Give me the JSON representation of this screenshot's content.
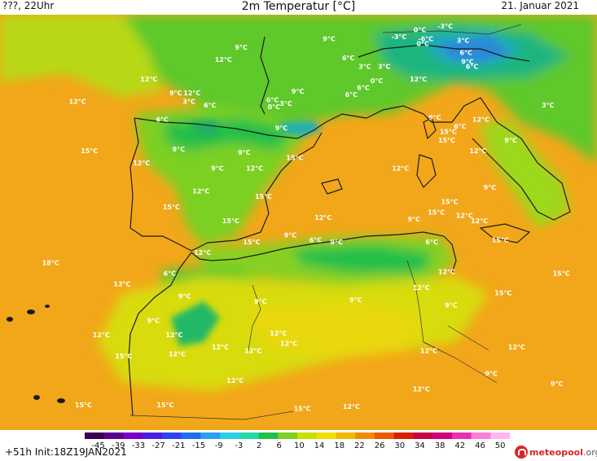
{
  "header": {
    "left": "???, 22Uhr",
    "center": "2m Temperatur [°C]",
    "right": "21. Januar 2021"
  },
  "footer": {
    "left": "+51h Init:18Z19JAN2021",
    "brand_name": "meteopool",
    "brand_tld": ".org"
  },
  "map_labels": [
    {
      "text": "0°C",
      "lon": 10.6,
      "lat": 47.2
    },
    {
      "text": "-3°C",
      "lon": 12.3,
      "lat": 47.4
    },
    {
      "text": "-3°C",
      "lon": 9.2,
      "lat": 46.8
    },
    {
      "text": "-6°C",
      "lon": 11.0,
      "lat": 46.7
    },
    {
      "text": "0°C",
      "lon": 10.8,
      "lat": 46.4
    },
    {
      "text": "3°C",
      "lon": 13.5,
      "lat": 46.6
    },
    {
      "text": "9°C",
      "lon": 4.5,
      "lat": 46.7
    },
    {
      "text": "6°C",
      "lon": 5.8,
      "lat": 45.6
    },
    {
      "text": "3°C",
      "lon": 6.9,
      "lat": 45.1
    },
    {
      "text": "3°C",
      "lon": 8.2,
      "lat": 45.1
    },
    {
      "text": "0°C",
      "lon": 7.7,
      "lat": 44.3
    },
    {
      "text": "6°C",
      "lon": 6.8,
      "lat": 43.9
    },
    {
      "text": "12°C",
      "lon": 10.5,
      "lat": 44.4
    },
    {
      "text": "6°C",
      "lon": 13.7,
      "lat": 45.9
    },
    {
      "text": "9°C",
      "lon": 13.8,
      "lat": 45.4
    },
    {
      "text": "6°C",
      "lon": 14.1,
      "lat": 45.1
    },
    {
      "text": "9°C",
      "lon": -1.4,
      "lat": 46.2
    },
    {
      "text": "12°C",
      "lon": -2.6,
      "lat": 45.5
    },
    {
      "text": "12°C",
      "lon": -7.6,
      "lat": 44.4
    },
    {
      "text": "12°C",
      "lon": -12.4,
      "lat": 43.1
    },
    {
      "text": "9°C",
      "lon": 2.4,
      "lat": 43.7
    },
    {
      "text": "9°C",
      "lon": -5.8,
      "lat": 43.6
    },
    {
      "text": "12°C",
      "lon": -4.7,
      "lat": 43.6
    },
    {
      "text": "3°C",
      "lon": -4.9,
      "lat": 43.1
    },
    {
      "text": "6°C",
      "lon": -3.5,
      "lat": 42.9
    },
    {
      "text": "6°C",
      "lon": 0.7,
      "lat": 43.2
    },
    {
      "text": "3°C",
      "lon": 1.6,
      "lat": 43.0
    },
    {
      "text": "0°C",
      "lon": 0.8,
      "lat": 42.8
    },
    {
      "text": "6°C",
      "lon": 6.0,
      "lat": 43.5
    },
    {
      "text": "6°C",
      "lon": -6.7,
      "lat": 42.1
    },
    {
      "text": "9°C",
      "lon": 1.3,
      "lat": 41.6
    },
    {
      "text": "9°C",
      "lon": 11.6,
      "lat": 42.2
    },
    {
      "text": "15°C",
      "lon": 12.5,
      "lat": 41.4
    },
    {
      "text": "6°C",
      "lon": 13.3,
      "lat": 41.7
    },
    {
      "text": "12°C",
      "lon": 14.7,
      "lat": 42.1
    },
    {
      "text": "15°C",
      "lon": 12.4,
      "lat": 40.9
    },
    {
      "text": "12°C",
      "lon": 14.5,
      "lat": 40.3
    },
    {
      "text": "9°C",
      "lon": 16.7,
      "lat": 40.9
    },
    {
      "text": "3°C",
      "lon": 19.2,
      "lat": 42.9
    },
    {
      "text": "15°C",
      "lon": -11.6,
      "lat": 40.3
    },
    {
      "text": "9°C",
      "lon": -5.6,
      "lat": 40.4
    },
    {
      "text": "12°C",
      "lon": -8.1,
      "lat": 39.6
    },
    {
      "text": "9°C",
      "lon": -1.2,
      "lat": 40.2
    },
    {
      "text": "15°C",
      "lon": 2.2,
      "lat": 39.9
    },
    {
      "text": "9°C",
      "lon": -3.0,
      "lat": 39.3
    },
    {
      "text": "12°C",
      "lon": -0.5,
      "lat": 39.3
    },
    {
      "text": "12°C",
      "lon": 9.3,
      "lat": 39.3
    },
    {
      "text": "12°C",
      "lon": -4.1,
      "lat": 38.0
    },
    {
      "text": "15°C",
      "lon": 0.1,
      "lat": 37.7
    },
    {
      "text": "15°C",
      "lon": 12.6,
      "lat": 37.4
    },
    {
      "text": "9°C",
      "lon": 15.3,
      "lat": 38.2
    },
    {
      "text": "15°C",
      "lon": -6.1,
      "lat": 37.1
    },
    {
      "text": "15°C",
      "lon": -2.1,
      "lat": 36.3
    },
    {
      "text": "12°C",
      "lon": 4.1,
      "lat": 36.5
    },
    {
      "text": "15°C",
      "lon": 11.7,
      "lat": 36.8
    },
    {
      "text": "9°C",
      "lon": 10.2,
      "lat": 36.4
    },
    {
      "text": "12°C",
      "lon": 13.6,
      "lat": 36.6
    },
    {
      "text": "12°C",
      "lon": 14.6,
      "lat": 36.3
    },
    {
      "text": "15°C",
      "lon": 16.0,
      "lat": 35.2
    },
    {
      "text": "15°C",
      "lon": -0.7,
      "lat": 35.1
    },
    {
      "text": "9°C",
      "lon": 1.9,
      "lat": 35.5
    },
    {
      "text": "6°C",
      "lon": 3.6,
      "lat": 35.2
    },
    {
      "text": "9°C",
      "lon": 5.0,
      "lat": 35.1
    },
    {
      "text": "6°C",
      "lon": 11.4,
      "lat": 35.1
    },
    {
      "text": "12°C",
      "lon": -4.0,
      "lat": 34.5
    },
    {
      "text": "18°C",
      "lon": -14.2,
      "lat": 33.9
    },
    {
      "text": "12°C",
      "lon": -9.4,
      "lat": 32.7
    },
    {
      "text": "6°C",
      "lon": -6.2,
      "lat": 33.3
    },
    {
      "text": "9°C",
      "lon": -5.2,
      "lat": 32.0
    },
    {
      "text": "9°C",
      "lon": -0.1,
      "lat": 31.7
    },
    {
      "text": "9°C",
      "lon": 6.3,
      "lat": 31.8
    },
    {
      "text": "12°C",
      "lon": 10.7,
      "lat": 32.5
    },
    {
      "text": "12°C",
      "lon": 12.4,
      "lat": 33.4
    },
    {
      "text": "9°C",
      "lon": 12.7,
      "lat": 31.5
    },
    {
      "text": "15°C",
      "lon": 16.2,
      "lat": 32.2
    },
    {
      "text": "15°C",
      "lon": 20.1,
      "lat": 33.3
    },
    {
      "text": "9°C",
      "lon": -7.3,
      "lat": 30.6
    },
    {
      "text": "12°C",
      "lon": -10.8,
      "lat": 29.8
    },
    {
      "text": "12°C",
      "lon": -5.9,
      "lat": 29.8
    },
    {
      "text": "12°C",
      "lon": 1.1,
      "lat": 29.9
    },
    {
      "text": "12°C",
      "lon": -2.8,
      "lat": 29.1
    },
    {
      "text": "12°C",
      "lon": -0.6,
      "lat": 28.9
    },
    {
      "text": "12°C",
      "lon": 1.8,
      "lat": 29.3
    },
    {
      "text": "12°C",
      "lon": 11.2,
      "lat": 28.9
    },
    {
      "text": "12°C",
      "lon": 17.1,
      "lat": 29.1
    },
    {
      "text": "15°C",
      "lon": -9.3,
      "lat": 28.6
    },
    {
      "text": "12°C",
      "lon": -5.7,
      "lat": 28.7
    },
    {
      "text": "9°C",
      "lon": 15.4,
      "lat": 27.6
    },
    {
      "text": "12°C",
      "lon": -1.8,
      "lat": 27.2
    },
    {
      "text": "9°C",
      "lon": 19.8,
      "lat": 27.0
    },
    {
      "text": "12°C",
      "lon": 10.7,
      "lat": 26.7
    },
    {
      "text": "15°C",
      "lon": -12.0,
      "lat": 25.8
    },
    {
      "text": "15°C",
      "lon": -6.5,
      "lat": 25.8
    },
    {
      "text": "15°C",
      "lon": 2.7,
      "lat": 25.6
    },
    {
      "text": "12°C",
      "lon": 6.0,
      "lat": 25.7
    }
  ],
  "colorbar": {
    "ticks": [
      "-45",
      "-39",
      "-33",
      "-27",
      "-21",
      "-15",
      "-9",
      "-3",
      "2",
      "6",
      "10",
      "14",
      "18",
      "22",
      "26",
      "30",
      "34",
      "38",
      "42",
      "46",
      "50"
    ],
    "colors": [
      "#3a0050",
      "#5a008a",
      "#7a00c8",
      "#4c1ee0",
      "#2f44f0",
      "#1f6ff0",
      "#2aa0f0",
      "#2ad0e8",
      "#22d8a8",
      "#22c04a",
      "#7ed020",
      "#c8e000",
      "#f0e000",
      "#f0b800",
      "#f08c00",
      "#e85a00",
      "#d82000",
      "#c80048",
      "#d0007a",
      "#e830b0",
      "#f680d8",
      "#fcb8f0"
    ]
  },
  "colors": {
    "sea": "#f2a71a",
    "warm_land": "#f2b418",
    "coast_line": "#1b1b1b",
    "label": "#ffffff"
  }
}
